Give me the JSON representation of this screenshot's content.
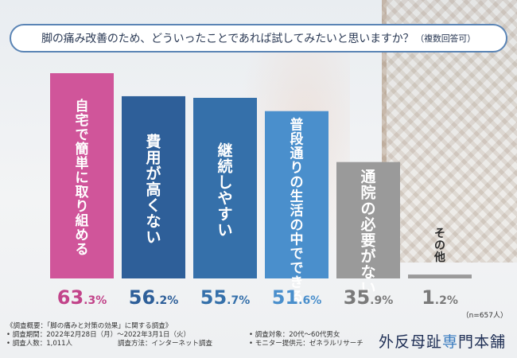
{
  "title": {
    "main": "脚の痛み改善のため、どういったことであれば試してみたいと思いますか？",
    "sub": "（複数回答可）"
  },
  "chart_data": {
    "type": "bar",
    "title": "脚の痛み改善のため、どういったことであれば試してみたいと思いますか？（複数回答可）",
    "categories": [
      "自宅で簡単に取り組める",
      "費用が高くない",
      "継続しやすい",
      "普段通りの生活の中でできる",
      "通院の必要がない",
      "その他"
    ],
    "values": [
      63.3,
      56.2,
      55.7,
      51.6,
      35.9,
      1.2
    ],
    "value_labels": [
      {
        "int": "63",
        "dec": ".3",
        "unit": "%"
      },
      {
        "int": "56",
        "dec": ".2",
        "unit": "%"
      },
      {
        "int": "55",
        "dec": ".7",
        "unit": "%"
      },
      {
        "int": "51",
        "dec": ".6",
        "unit": "%"
      },
      {
        "int": "35",
        "dec": ".9",
        "unit": "%"
      },
      {
        "int": "1",
        "dec": ".2",
        "unit": "%"
      }
    ],
    "colors": [
      "#d0559a",
      "#2e5f99",
      "#3570aa",
      "#4a8fcc",
      "#9a9a9a",
      "#9a9a9a"
    ],
    "label_colors": [
      "#c2448a",
      "#2e5f99",
      "#3570aa",
      "#4a8fcc",
      "#7a7a7a",
      "#7a7a7a"
    ],
    "ylim": [
      0,
      63.3
    ],
    "xlabel": "",
    "ylabel": "",
    "n_note": "（n=657人）"
  },
  "footer": {
    "heading": "《調査概要：「脚の痛みと対策の効果」に関する調査》",
    "period": "• 調査期間：2022年2月28日（月）～2022年3月1日（火）",
    "people": "• 調査人数：1,011人",
    "method": "調査方法：インターネット調査",
    "target": "• 調査対象：20代～60代男女",
    "provider": "• モニター提供元：ゼネラルリサーチ"
  },
  "brand": {
    "pre": "外",
    "middle": "反母趾",
    "accent": "専",
    "post": "門本舗"
  }
}
